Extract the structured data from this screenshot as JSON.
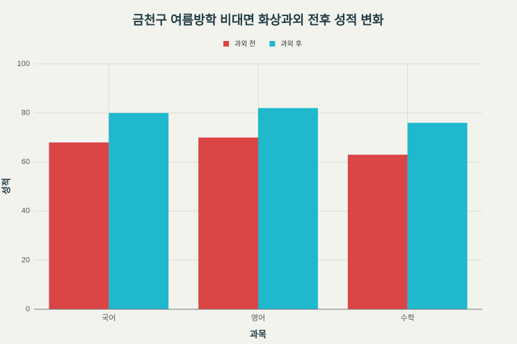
{
  "chart_data": {
    "type": "bar",
    "title": "금천구 여름방학 비대면 화상과외 전후 성적 변화",
    "x_label": "과목",
    "y_label": "성적",
    "categories": [
      "국어",
      "영어",
      "수학"
    ],
    "series": [
      {
        "name": "과외 전",
        "color": "#db4545",
        "values": [
          68,
          70,
          63
        ]
      },
      {
        "name": "과외 후",
        "color": "#1fb8cd",
        "values": [
          80,
          82,
          76
        ]
      }
    ],
    "ylim": [
      0,
      100
    ],
    "yticks": [
      0,
      20,
      40,
      60,
      80,
      100
    ],
    "grid": true,
    "legend": "top"
  }
}
